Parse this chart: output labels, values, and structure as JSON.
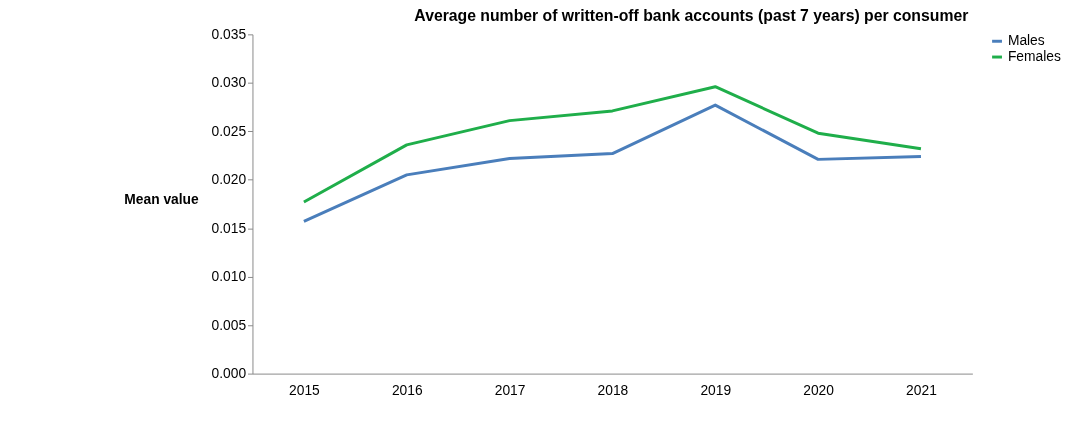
{
  "chart_data": {
    "type": "line",
    "title": "Average number of written-off bank accounts (past 7 years) per consumer",
    "ylabel": "Mean value",
    "categories": [
      "2015",
      "2016",
      "2017",
      "2018",
      "2019",
      "2020",
      "2021"
    ],
    "series": [
      {
        "name": "Males",
        "color": "#4a7ebb",
        "values": [
          0.0157,
          0.0205,
          0.0222,
          0.0227,
          0.0277,
          0.0221,
          0.0224
        ]
      },
      {
        "name": "Females",
        "color": "#1fae4a",
        "values": [
          0.0177,
          0.0236,
          0.0261,
          0.0271,
          0.0296,
          0.0248,
          0.0232
        ]
      }
    ],
    "ylim": [
      0,
      0.035
    ],
    "yticks": [
      {
        "value": 0,
        "label": "0.000"
      },
      0.005,
      {
        "value": 0.01,
        "label": "0.010"
      },
      0.015,
      {
        "value": 0.02,
        "label": "0.020"
      },
      0.025,
      {
        "value": 0.03,
        "label": "0.030"
      },
      0.035
    ],
    "grid": false,
    "legend": "right",
    "marker": "none",
    "line_style": "solid"
  }
}
